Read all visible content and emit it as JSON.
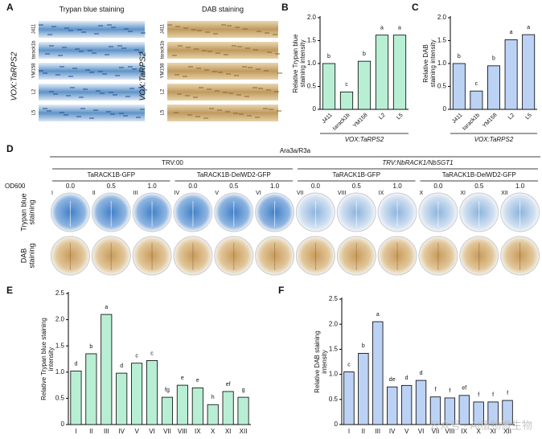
{
  "chart_data": [
    {
      "type": "bar",
      "label": "B",
      "ylabel": [
        "Relative Trypan blue",
        "staining intensity"
      ],
      "categories": [
        "J411",
        "tarack1b",
        "YM158",
        "L2",
        "L5"
      ],
      "values": [
        1.0,
        0.38,
        1.05,
        1.62,
        1.62
      ],
      "annotations": [
        "b",
        "c",
        "b",
        "a",
        "a"
      ],
      "group_label": "VOX:TaRPS2",
      "color": "#b8efd4",
      "ylim": [
        0,
        2
      ],
      "yticks": [
        0,
        0.5,
        {
          "value": 1,
          "label": "1.0"
        },
        1.5,
        {
          "value": 2,
          "label": "2.0"
        }
      ]
    },
    {
      "type": "bar",
      "label": "C",
      "ylabel": [
        "Relative DAB",
        "staining intensity"
      ],
      "categories": [
        "J411",
        "tarack1b",
        "YM158",
        "L2",
        "L5"
      ],
      "values": [
        1.0,
        0.4,
        0.95,
        1.52,
        1.63
      ],
      "annotations": [
        "b",
        "c",
        "b",
        "a",
        "a"
      ],
      "group_label": "VOX:TaRPS2",
      "color": "#bcd2f5",
      "ylim": [
        0,
        2
      ],
      "yticks": [
        0,
        0.5,
        {
          "value": 1,
          "label": "1.0"
        },
        1.5,
        {
          "value": 2,
          "label": "2.0"
        }
      ]
    },
    {
      "type": "bar",
      "label": "E",
      "ylabel": [
        "Relative Trypan blue staining",
        "intensity"
      ],
      "categories": [
        "I",
        "II",
        "III",
        "IV",
        "V",
        "VI",
        "VII",
        "VIII",
        "IX",
        "X",
        "XI",
        "XII"
      ],
      "values": [
        1.02,
        1.35,
        2.1,
        0.98,
        1.17,
        1.22,
        0.52,
        0.75,
        0.7,
        0.38,
        0.63,
        0.52
      ],
      "annotations": [
        "d",
        "b",
        "a",
        "d",
        "c",
        "c",
        "fg",
        "e",
        "e",
        "h",
        "ef",
        "g"
      ],
      "color": "#b8efd4",
      "ylim": [
        0,
        2.5
      ],
      "yticks": [
        0,
        0.5,
        {
          "value": 1,
          "label": "1.0"
        },
        1.5,
        {
          "value": 2,
          "label": "2.0"
        },
        2.5
      ]
    },
    {
      "type": "bar",
      "label": "F",
      "ylabel": [
        "Relative DAB staining",
        "intensity"
      ],
      "categories": [
        "I",
        "II",
        "III",
        "IV",
        "V",
        "VI",
        "VII",
        "VIII",
        "IX",
        "X",
        "XI",
        "XII"
      ],
      "values": [
        1.05,
        1.42,
        2.05,
        0.75,
        0.78,
        0.88,
        0.55,
        0.53,
        0.58,
        0.45,
        0.45,
        0.48
      ],
      "annotations": [
        "c",
        "b",
        "a",
        "de",
        "d",
        "d",
        "f",
        "f",
        "ef",
        "f",
        "f",
        "f"
      ],
      "color": "#bcd2f5",
      "ylim": [
        0,
        2.5
      ],
      "yticks": [
        0,
        0.5,
        {
          "value": 1,
          "label": "1.0"
        },
        1.5,
        {
          "value": 2,
          "label": "2.0"
        },
        2.5
      ]
    }
  ],
  "panel_a": {
    "label": "A",
    "titles": [
      "Trypan blue staining",
      "DAB staining"
    ],
    "row_labels": [
      "J411",
      "tarack1b",
      "YM158",
      "L2",
      "L5"
    ],
    "side_label": "VOX:TaRPS2"
  },
  "panel_d": {
    "label": "D",
    "top": "Ara3a/R3a",
    "groups": [
      "TRV:00",
      "TRV:NbRACK1/NbSGT1"
    ],
    "subgroups": [
      "TaRACK1B-GFP",
      "TaRACK1B-DelWD2-GFP",
      "TaRACK1B-GFP",
      "TaRACK1B-DelWD2-GFP"
    ],
    "od_label": "OD600",
    "od": [
      "0.0",
      "0.5",
      "1.0",
      "0.0",
      "0.5",
      "1.0",
      "0.0",
      "0.5",
      "1.0",
      "0.0",
      "0.5",
      "1.0"
    ],
    "samples": [
      "I",
      "II",
      "III",
      "IV",
      "V",
      "VI",
      "VII",
      "VIII",
      "IX",
      "X",
      "XI",
      "XII"
    ],
    "row_labels": [
      [
        "Trypan blue",
        "staining"
      ],
      [
        "DAB",
        "staining"
      ]
    ]
  },
  "watermark": "公众号 · AI植物微生物"
}
